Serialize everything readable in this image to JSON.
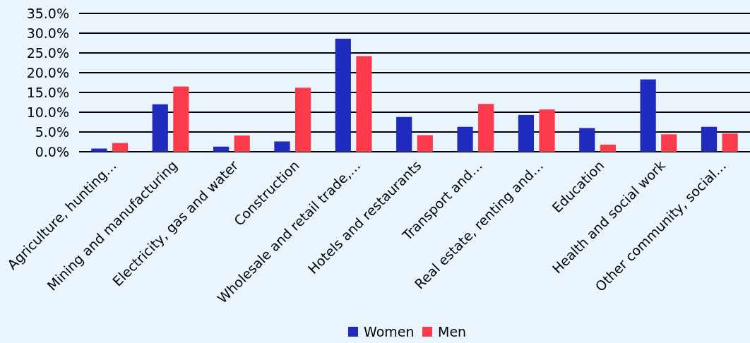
{
  "chart_data": {
    "type": "bar",
    "categories": [
      "Agriculture, hunting…",
      "Mining and manufacturing",
      "Electricity, gas and water",
      "Construction",
      "Wholesale and retail trade,…",
      "Hotels and restaurants",
      "Transport and…",
      "Real estate, renting and…",
      "Education",
      "Health and social work",
      "Other community, social…"
    ],
    "series": [
      {
        "name": "Women",
        "color": "#1f2bbd",
        "values": [
          0.8,
          12.0,
          1.3,
          2.6,
          28.6,
          8.8,
          6.3,
          9.3,
          6.0,
          18.3,
          6.3
        ]
      },
      {
        "name": "Men",
        "color": "#fb3a4c",
        "values": [
          2.2,
          16.5,
          4.1,
          16.2,
          24.2,
          4.2,
          12.1,
          10.7,
          1.8,
          4.4,
          4.6
        ]
      }
    ],
    "ylim": [
      0,
      35
    ],
    "yticks": [
      {
        "value": 0,
        "label": "0.0%"
      },
      {
        "value": 5,
        "label": "5.0%"
      },
      {
        "value": 10,
        "label": "10.0%"
      },
      {
        "value": 15,
        "label": "15.0%"
      },
      {
        "value": 20,
        "label": "20.0%"
      },
      {
        "value": 25,
        "label": "25.0%"
      },
      {
        "value": 30,
        "label": "30.0%"
      },
      {
        "value": 35,
        "label": "35.0%"
      }
    ],
    "grid": "y",
    "legend": "bottom"
  }
}
